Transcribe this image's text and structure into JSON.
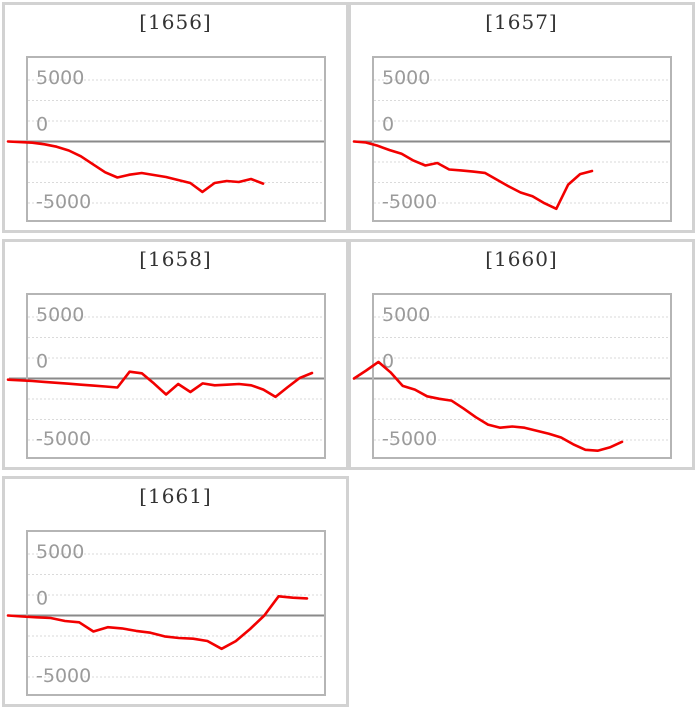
{
  "page": {
    "background": "#ffffff",
    "description_colors": {
      "series_red": "#f20000",
      "card_border": "#d2d2d2",
      "plot_frame_border": "#b5b5b5",
      "zero_axis_line": "#8a8a8a",
      "dotted_gridline": "#dadada",
      "tick_label_color": "#9b9b9b",
      "title_color": "#333333"
    }
  },
  "chart_data": [
    {
      "type": "line",
      "title": "[1656]",
      "y_ticks": [
        "5000",
        "0",
        "-5000"
      ],
      "ylim": [
        -6800,
        6800
      ],
      "grid": "dotted-horizontal",
      "legend": "none",
      "series_color": "#f20000",
      "x_step": 12.15,
      "values": [
        0,
        -50,
        -100,
        -230,
        -420,
        -730,
        -1200,
        -1850,
        -2500,
        -2930,
        -2700,
        -2560,
        -2720,
        -2890,
        -3130,
        -3370,
        -4100,
        -3370,
        -3210,
        -3290,
        -3050,
        -3420
      ]
    },
    {
      "type": "line",
      "title": "[1657]",
      "y_ticks": [
        "5000",
        "0",
        "-5000"
      ],
      "ylim": [
        -6800,
        6800
      ],
      "grid": "dotted-horizontal",
      "legend": "none",
      "series_color": "#f20000",
      "x_step": 11.9,
      "values": [
        0,
        -80,
        -350,
        -700,
        -1000,
        -1550,
        -1950,
        -1750,
        -2280,
        -2350,
        -2450,
        -2550,
        -3100,
        -3650,
        -4150,
        -4450,
        -5020,
        -5470,
        -3500,
        -2650,
        -2400
      ]
    },
    {
      "type": "line",
      "title": "[1658]",
      "y_ticks": [
        "5000",
        "0",
        "-5000"
      ],
      "ylim": [
        -6800,
        6800
      ],
      "grid": "dotted-horizontal",
      "legend": "none",
      "series_color": "#f20000",
      "x_step": 12.16,
      "values": [
        -100,
        -150,
        -200,
        -280,
        -350,
        -420,
        -500,
        -580,
        -650,
        -730,
        550,
        420,
        -400,
        -1300,
        -450,
        -1100,
        -400,
        -550,
        -500,
        -450,
        -550,
        -900,
        -1500,
        -700,
        50,
        450
      ]
    },
    {
      "type": "line",
      "title": "[1660]",
      "y_ticks": [
        "5000",
        "0",
        "-5000"
      ],
      "ylim": [
        -6800,
        6800
      ],
      "grid": "dotted-horizontal",
      "legend": "none",
      "series_color": "#f20000",
      "x_step": 12.18,
      "values": [
        0,
        650,
        1350,
        500,
        -600,
        -900,
        -1450,
        -1650,
        -1800,
        -2450,
        -3150,
        -3750,
        -4000,
        -3900,
        -4000,
        -4250,
        -4500,
        -4800,
        -5350,
        -5800,
        -5870,
        -5600,
        -5150
      ]
    },
    {
      "type": "line",
      "title": "[1661]",
      "y_ticks": [
        "5000",
        "0",
        "-5000"
      ],
      "ylim": [
        -6800,
        6800
      ],
      "grid": "dotted-horizontal",
      "legend": "none",
      "series_color": "#f20000",
      "x_step": 14.24,
      "values": [
        0,
        -80,
        -150,
        -200,
        -450,
        -550,
        -1300,
        -950,
        -1050,
        -1250,
        -1400,
        -1700,
        -1830,
        -1890,
        -2070,
        -2710,
        -2080,
        -1100,
        0,
        1560,
        1450,
        1390
      ]
    }
  ]
}
